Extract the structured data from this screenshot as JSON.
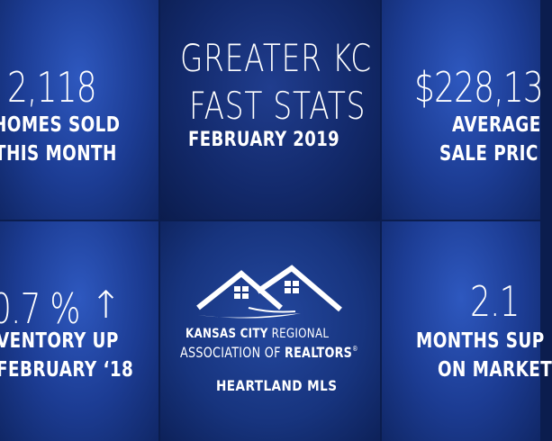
{
  "title": {
    "line1": "GREATER KC",
    "line2": "FAST STATS",
    "period": "FEBRUARY 2019"
  },
  "stats": {
    "homes_sold": {
      "value": "2,118",
      "label1": "HOMES SOLD",
      "label2": "THIS MONTH"
    },
    "avg_price": {
      "value": "$228,13",
      "label1": "AVERAGE",
      "label2": "SALE PRIC"
    },
    "inventory": {
      "value": "0.7 %",
      "arrow": "↑",
      "label1": "VENTORY UP",
      "label2": "FEBRUARY ‘18"
    },
    "supply": {
      "value": "2.1",
      "label1": "MONTHS SUP",
      "label2": "ON MARKET"
    }
  },
  "logo": {
    "icon": "house-roofs-icon",
    "line1_bold": "KANSAS CITY",
    "line1_rest": " REGIONAL",
    "line2_rest": "ASSOCIATION OF ",
    "line2_bold": "REALTORS",
    "reg_mark": "®",
    "mls": "HEARTLAND MLS"
  },
  "colors": {
    "background": "#0b1d4e",
    "tile_dark": "#132a6c",
    "tile_blue": "#1c3c93",
    "text": "#ffffff"
  }
}
